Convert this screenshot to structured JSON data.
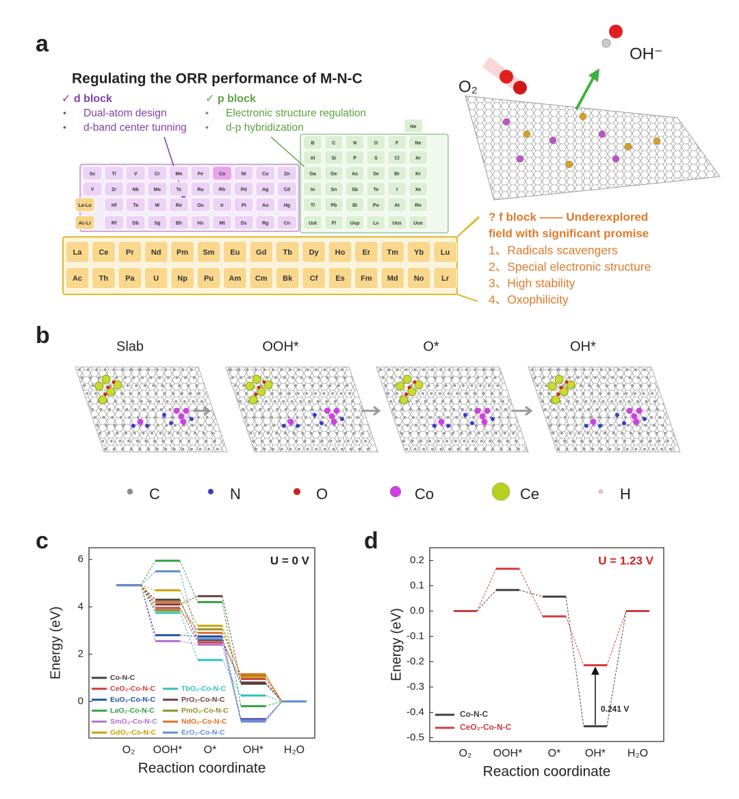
{
  "panel_labels": [
    "a",
    "b",
    "c",
    "d"
  ],
  "panel_a": {
    "title": "Regulating the ORR performance of M-N-C",
    "d_block": {
      "heading": "✓ d block",
      "items": [
        "Dual-atom design",
        "d-band center tunning"
      ]
    },
    "p_block": {
      "heading": "✓ p block",
      "items": [
        "Electronic structure regulation",
        "d-p hybridization"
      ]
    },
    "molecules": {
      "reactant": "O₂",
      "product": "OH⁻"
    },
    "periodic_table": {
      "d_block": [
        [
          "Sc",
          "Ti",
          "V",
          "Cr",
          "Mn",
          "Fe",
          "Co",
          "Ni",
          "Cu",
          "Zn"
        ],
        [
          "Y",
          "Zr",
          "Nb",
          "Mo",
          "Tc",
          "Ru",
          "Rh",
          "Pd",
          "Ag",
          "Cd"
        ],
        [
          "La-Lu",
          "Hf",
          "Ta",
          "W",
          "Re",
          "Os",
          "Ir",
          "Pt",
          "Au",
          "Hg"
        ],
        [
          "Ac-Lr",
          "Rf",
          "Db",
          "Sg",
          "Bh",
          "Hs",
          "Mt",
          "Ds",
          "Rg",
          "Cn"
        ]
      ],
      "p_block": [
        [
          "He"
        ],
        [
          "B",
          "C",
          "N",
          "O",
          "F",
          "Ne"
        ],
        [
          "Al",
          "Si",
          "P",
          "S",
          "Cl",
          "Ar"
        ],
        [
          "Ga",
          "Ge",
          "As",
          "Se",
          "Br",
          "Kr"
        ],
        [
          "In",
          "Sn",
          "Sb",
          "Te",
          "I",
          "Xe"
        ],
        [
          "Tl",
          "Pb",
          "Bi",
          "Po",
          "At",
          "Rn"
        ],
        [
          "Uut",
          "Fl",
          "Uup",
          "Lv",
          "Uus",
          "Uuo"
        ]
      ],
      "f_block": [
        [
          "La",
          "Ce",
          "Pr",
          "Nd",
          "Pm",
          "Sm",
          "Eu",
          "Gd",
          "Tb",
          "Dy",
          "Ho",
          "Er",
          "Tm",
          "Yb",
          "Lu"
        ],
        [
          "Ac",
          "Th",
          "Pa",
          "U",
          "Np",
          "Pu",
          "Am",
          "Cm",
          "Bk",
          "Cf",
          "Es",
          "Fm",
          "Md",
          "No",
          "Lr"
        ]
      ]
    },
    "f_block_note": {
      "heading_lines": [
        "? f block —— Underexplored",
        "field with significant promise"
      ],
      "items": [
        "1、Radicals scavengers",
        "2、Special electronic structure",
        "3、High stability",
        "4、Oxophilicity"
      ]
    }
  },
  "panel_b": {
    "states": [
      "Slab",
      "OOH*",
      "O*",
      "OH*"
    ],
    "legend": [
      {
        "label": "C",
        "color": "#8c8c8c"
      },
      {
        "label": "N",
        "color": "#3a3ad0"
      },
      {
        "label": "O",
        "color": "#d02020"
      },
      {
        "label": "Co",
        "color": "#d040e0"
      },
      {
        "label": "Ce",
        "color": "#b8d020"
      },
      {
        "label": "H",
        "color": "#f0c8c8"
      }
    ]
  },
  "chart_data": [
    {
      "type": "energy_levels",
      "annotation": "U = 0 V",
      "xlabel": "Reaction coordinate",
      "ylabel": "Energy (eV)",
      "categories": [
        "O₂",
        "OOH*",
        "O*",
        "OH*",
        "H₂O"
      ],
      "ylim": [
        -1.55,
        6.5
      ],
      "yticks": [
        0,
        2,
        4,
        6
      ],
      "series": [
        {
          "name": "Co-N-C",
          "color": "#404040",
          "values": [
            4.92,
            4.3,
            2.6,
            0.75,
            0
          ]
        },
        {
          "name": "CeO₂-Co-N-C",
          "color": "#d03a3a",
          "values": [
            4.92,
            3.95,
            2.5,
            0.95,
            0
          ]
        },
        {
          "name": "EuO₂-Co-N-C",
          "color": "#2050a8",
          "values": [
            4.92,
            2.8,
            2.75,
            -0.75,
            0
          ]
        },
        {
          "name": "LaO₂-Co-N-C",
          "color": "#30a040",
          "values": [
            4.92,
            5.95,
            4.2,
            -0.2,
            0
          ]
        },
        {
          "name": "SmO₂-Co-N-C",
          "color": "#b070d0",
          "values": [
            4.92,
            2.55,
            2.4,
            -0.8,
            0
          ]
        },
        {
          "name": "GdO₂-Co-N-C",
          "color": "#c8a000",
          "values": [
            4.92,
            4.7,
            3.2,
            1.05,
            0
          ]
        },
        {
          "name": "TbO₂-Co-N-C",
          "color": "#30c0c0",
          "values": [
            4.92,
            3.75,
            1.75,
            0.25,
            0
          ]
        },
        {
          "name": "PrO₂-Co-N-C",
          "color": "#6a3d3d",
          "values": [
            4.92,
            4.1,
            4.45,
            0.8,
            0
          ]
        },
        {
          "name": "PmO₂-Co-N-C",
          "color": "#909020",
          "values": [
            4.92,
            3.85,
            3.05,
            1.1,
            0
          ]
        },
        {
          "name": "NdO₂-Co-N-C",
          "color": "#e07020",
          "values": [
            4.92,
            4.2,
            2.9,
            1.15,
            0
          ]
        },
        {
          "name": "ErO₂-Co-N-C",
          "color": "#6090d0",
          "values": [
            4.92,
            5.5,
            2.65,
            -0.85,
            0
          ]
        }
      ]
    },
    {
      "type": "energy_levels",
      "annotation": "U = 1.23 V",
      "annotation_color": "#d02020",
      "arrow_label": "0.241 V",
      "xlabel": "Reaction coordinate",
      "ylabel": "Energy (eV)",
      "categories": [
        "O₂",
        "OOH*",
        "O*",
        "OH*",
        "H₂O"
      ],
      "ylim": [
        -0.515,
        0.25
      ],
      "yticks": [
        -0.5,
        -0.4,
        -0.3,
        -0.2,
        -0.1,
        {
          "value": 0,
          "label": "0.0"
        },
        0.1,
        0.2
      ],
      "series": [
        {
          "name": "Co-N-C",
          "color": "#404040",
          "values": [
            0,
            0.083,
            0.057,
            -0.455,
            0
          ]
        },
        {
          "name": "CeO₂-Co-N-C",
          "color": "#d03a3a",
          "values": [
            0,
            0.167,
            -0.021,
            -0.214,
            0
          ]
        }
      ]
    }
  ]
}
